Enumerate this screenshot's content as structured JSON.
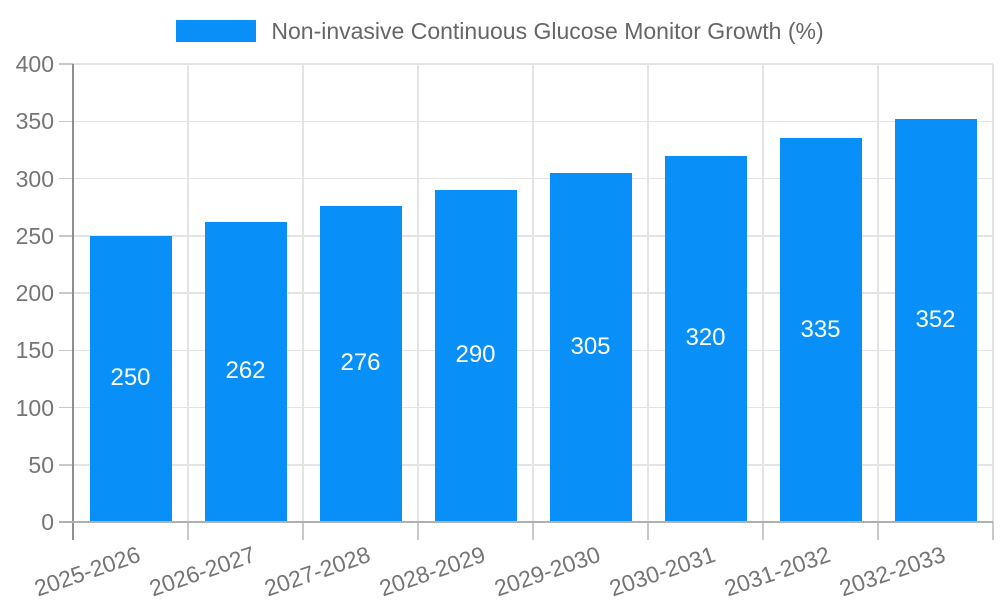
{
  "chart_data": {
    "type": "bar",
    "title": "Non-invasive Continuous Glucose Monitor Growth (%)",
    "legend": {
      "label": "Non-invasive Continuous Glucose Monitor Growth (%)",
      "position": "top"
    },
    "categories": [
      "2025-2026",
      "2026-2027",
      "2027-2028",
      "2028-2029",
      "2029-2030",
      "2030-2031",
      "2031-2032",
      "2032-2033"
    ],
    "values": [
      250,
      262,
      276,
      290,
      305,
      320,
      335,
      352
    ],
    "xlabel": "",
    "ylabel": "",
    "ylim": [
      0,
      400
    ],
    "yticks": [
      0,
      50,
      100,
      150,
      200,
      250,
      300,
      350,
      400
    ],
    "grid": true,
    "value_labels": "inside-center",
    "colors": {
      "bar": "#0890F8",
      "grid": "#E4E4E4",
      "tick": "#C9C9C9",
      "axis_y": "#8F8F8F",
      "axis_x": "#B0B0B0",
      "text": "#757575",
      "legend_text": "#666666",
      "value_text": "#FFFFFF"
    }
  }
}
